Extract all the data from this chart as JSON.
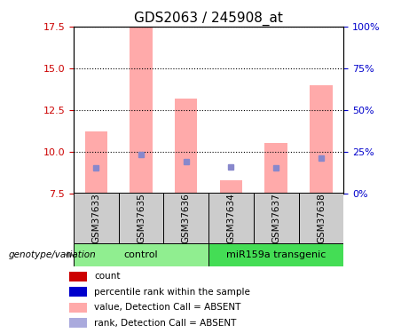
{
  "title": "GDS2063 / 245908_at",
  "ylim_left": [
    7.5,
    17.5
  ],
  "ylim_right": [
    0,
    100
  ],
  "yticks_left": [
    7.5,
    10.0,
    12.5,
    15.0,
    17.5
  ],
  "yticks_right": [
    0,
    25,
    50,
    75,
    100
  ],
  "ytick_labels_right": [
    "0%",
    "25%",
    "50%",
    "75%",
    "100%"
  ],
  "samples": [
    "GSM37633",
    "GSM37635",
    "GSM37636",
    "GSM37634",
    "GSM37637",
    "GSM37638"
  ],
  "pink_bar_values": [
    11.2,
    17.5,
    13.2,
    8.3,
    10.5,
    14.0
  ],
  "blue_dot_values": [
    9.0,
    9.8,
    9.4,
    9.05,
    9.0,
    9.6
  ],
  "bar_bottom": 7.5,
  "groups": [
    {
      "label": "control",
      "start": 0,
      "end": 3,
      "color": "#90ee90"
    },
    {
      "label": "miR159a transgenic",
      "start": 3,
      "end": 6,
      "color": "#44dd55"
    }
  ],
  "pink_color": "#ffaaaa",
  "blue_color": "#8888cc",
  "bar_width": 0.5,
  "grid_color": "black",
  "sample_box_color": "#cccccc",
  "legend_items": [
    {
      "color": "#cc0000",
      "label": "count"
    },
    {
      "color": "#0000cc",
      "label": "percentile rank within the sample"
    },
    {
      "color": "#ffaaaa",
      "label": "value, Detection Call = ABSENT"
    },
    {
      "color": "#aaaadd",
      "label": "rank, Detection Call = ABSENT"
    }
  ],
  "group_label_prefix": "genotype/variation",
  "left_axis_color": "#cc0000",
  "right_axis_color": "#0000cc"
}
